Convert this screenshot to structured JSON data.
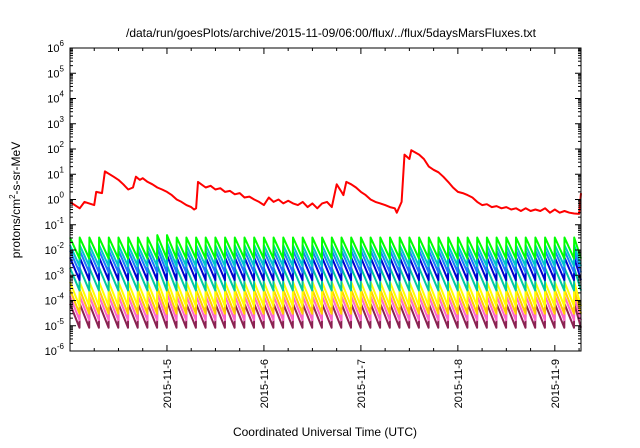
{
  "chart_data": {
    "type": "line",
    "title": "/data/run/goesPlots/archive/2015-11-09/06:00/flux/../flux/5daysMarsFluxes.txt",
    "xlabel": "Coordinated Universal Time (UTC)",
    "ylabel_main": "protons/cm",
    "ylabel_sup": "2",
    "ylabel_tail": "-s-sr-MeV",
    "yscale": "log",
    "ylim_exp": [
      -6,
      6
    ],
    "y_ticks": [
      {
        "exp": -6,
        "base": "10",
        "sup": "-6"
      },
      {
        "exp": -5,
        "base": "10",
        "sup": "-5"
      },
      {
        "exp": -4,
        "base": "10",
        "sup": "-4"
      },
      {
        "exp": -3,
        "base": "10",
        "sup": "-3"
      },
      {
        "exp": -2,
        "base": "10",
        "sup": "-2"
      },
      {
        "exp": -1,
        "base": "10",
        "sup": "-1"
      },
      {
        "exp": 0,
        "base": "10",
        "sup": "0"
      },
      {
        "exp": 1,
        "base": "10",
        "sup": "1"
      },
      {
        "exp": 2,
        "base": "10",
        "sup": "2"
      },
      {
        "exp": 3,
        "base": "10",
        "sup": "3"
      },
      {
        "exp": 4,
        "base": "10",
        "sup": "4"
      },
      {
        "exp": 5,
        "base": "10",
        "sup": "5"
      },
      {
        "exp": 6,
        "base": "10",
        "sup": "6"
      }
    ],
    "x_ticks": [
      {
        "day": 5,
        "label": "2015-11-5"
      },
      {
        "day": 6,
        "label": "2015-11-6"
      },
      {
        "day": 7,
        "label": "2015-11-7"
      },
      {
        "day": 8,
        "label": "2015-11-8"
      },
      {
        "day": 9,
        "label": "2015-11-9"
      }
    ],
    "xlim_day": [
      4.0,
      9.27
    ],
    "grid": false,
    "series": [
      {
        "color": "#ff0000",
        "points": [
          [
            4.0,
            0.8
          ],
          [
            4.1,
            0.45
          ],
          [
            4.15,
            0.8
          ],
          [
            4.25,
            0.6
          ],
          [
            4.27,
            2.0
          ],
          [
            4.33,
            1.8
          ],
          [
            4.36,
            13
          ],
          [
            4.45,
            8
          ],
          [
            4.5,
            6
          ],
          [
            4.55,
            4
          ],
          [
            4.6,
            2.5
          ],
          [
            4.65,
            3
          ],
          [
            4.68,
            8
          ],
          [
            4.72,
            6
          ],
          [
            4.75,
            7
          ],
          [
            4.8,
            5
          ],
          [
            4.85,
            4
          ],
          [
            4.9,
            3
          ],
          [
            4.95,
            2.5
          ],
          [
            5.0,
            2
          ],
          [
            5.05,
            1.5
          ],
          [
            5.1,
            1
          ],
          [
            5.15,
            0.8
          ],
          [
            5.2,
            0.6
          ],
          [
            5.25,
            0.5
          ],
          [
            5.28,
            0.4
          ],
          [
            5.3,
            0.45
          ],
          [
            5.32,
            5
          ],
          [
            5.4,
            3
          ],
          [
            5.45,
            3.5
          ],
          [
            5.5,
            2.5
          ],
          [
            5.55,
            2.8
          ],
          [
            5.6,
            2
          ],
          [
            5.65,
            2.2
          ],
          [
            5.7,
            1.6
          ],
          [
            5.75,
            1.8
          ],
          [
            5.8,
            1.2
          ],
          [
            5.85,
            1.3
          ],
          [
            5.9,
            1.0
          ],
          [
            5.95,
            0.8
          ],
          [
            6.0,
            0.6
          ],
          [
            6.05,
            1.2
          ],
          [
            6.1,
            0.8
          ],
          [
            6.15,
            1.0
          ],
          [
            6.2,
            0.7
          ],
          [
            6.25,
            0.9
          ],
          [
            6.3,
            0.7
          ],
          [
            6.35,
            0.6
          ],
          [
            6.4,
            0.8
          ],
          [
            6.45,
            0.5
          ],
          [
            6.5,
            0.7
          ],
          [
            6.55,
            0.45
          ],
          [
            6.6,
            0.7
          ],
          [
            6.65,
            0.8
          ],
          [
            6.7,
            0.5
          ],
          [
            6.75,
            4
          ],
          [
            6.8,
            2
          ],
          [
            6.82,
            1.5
          ],
          [
            6.85,
            5
          ],
          [
            6.9,
            4
          ],
          [
            6.95,
            3
          ],
          [
            7.0,
            2
          ],
          [
            7.05,
            1.5
          ],
          [
            7.1,
            1.0
          ],
          [
            7.15,
            0.8
          ],
          [
            7.2,
            0.7
          ],
          [
            7.25,
            0.6
          ],
          [
            7.3,
            0.5
          ],
          [
            7.35,
            0.45
          ],
          [
            7.37,
            0.3
          ],
          [
            7.42,
            0.8
          ],
          [
            7.45,
            60
          ],
          [
            7.5,
            40
          ],
          [
            7.52,
            90
          ],
          [
            7.6,
            60
          ],
          [
            7.65,
            40
          ],
          [
            7.7,
            20
          ],
          [
            7.75,
            15
          ],
          [
            7.8,
            12
          ],
          [
            7.85,
            8
          ],
          [
            7.9,
            5
          ],
          [
            7.95,
            3
          ],
          [
            8.0,
            2
          ],
          [
            8.05,
            1.8
          ],
          [
            8.1,
            1.5
          ],
          [
            8.15,
            1.2
          ],
          [
            8.2,
            0.8
          ],
          [
            8.25,
            0.6
          ],
          [
            8.3,
            0.65
          ],
          [
            8.35,
            0.5
          ],
          [
            8.4,
            0.55
          ],
          [
            8.45,
            0.45
          ],
          [
            8.5,
            0.5
          ],
          [
            8.55,
            0.4
          ],
          [
            8.6,
            0.45
          ],
          [
            8.65,
            0.35
          ],
          [
            8.7,
            0.45
          ],
          [
            8.75,
            0.35
          ],
          [
            8.8,
            0.4
          ],
          [
            8.85,
            0.35
          ],
          [
            8.9,
            0.45
          ],
          [
            8.95,
            0.3
          ],
          [
            9.0,
            0.4
          ],
          [
            9.05,
            0.3
          ],
          [
            9.1,
            0.35
          ],
          [
            9.15,
            0.3
          ],
          [
            9.2,
            0.28
          ],
          [
            9.25,
            0.27
          ],
          [
            9.27,
            1.8
          ]
        ]
      },
      {
        "color": "#00ff00",
        "base": 0.012,
        "amp": 2.6
      },
      {
        "color": "#00c8c8",
        "base": 0.006,
        "amp": 2.6
      },
      {
        "color": "#1e78ff",
        "base": 0.0035,
        "amp": 2.7
      },
      {
        "color": "#0000cd",
        "base": 0.0018,
        "amp": 2.8
      },
      {
        "color": "#00c8a0",
        "base": 0.0007,
        "amp": 2.8
      },
      {
        "color": "#ffff00",
        "base": 0.00018,
        "amp": 3.0
      },
      {
        "color": "#ffcc00",
        "base": 9e-05,
        "amp": 3.0
      },
      {
        "color": "#ff66cc",
        "base": 5e-05,
        "amp": 3.0
      },
      {
        "color": "#8b2252",
        "base": 2.5e-05,
        "amp": 3.0
      }
    ],
    "sawtooth_period_day": 0.1
  }
}
